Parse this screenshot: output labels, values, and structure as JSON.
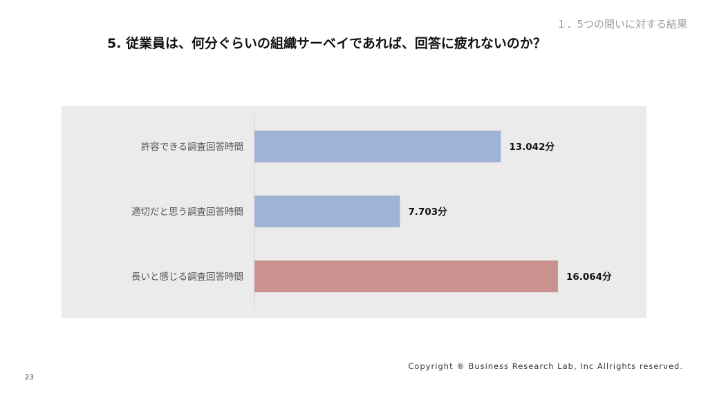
{
  "header": {
    "section_label": "１．5つの問いに対する結果",
    "title": "5. 従業員は、何分ぐらいの組織サーベイであれば、回答に疲れないのか？"
  },
  "chart_data": {
    "type": "bar",
    "orientation": "horizontal",
    "categories": [
      "許容できる調査回答時間",
      "適切だと思う調査回答時間",
      "長いと感じる調査回答時間"
    ],
    "values": [
      13.042,
      7.703,
      16.064
    ],
    "data_labels": [
      "13.042分",
      "7.703分",
      "16.064分"
    ],
    "bar_colors": [
      "#a0b2d6",
      "#a0b2d6",
      "#c9928f"
    ],
    "xlim": [
      0,
      17.2
    ],
    "title": "",
    "xlabel": "",
    "ylabel": "",
    "grid": false,
    "background": "#ebebeb"
  },
  "footer": {
    "copyright": "Copyright ® Business Research Lab, Inc Allrights reserved.",
    "page_number": "23"
  }
}
